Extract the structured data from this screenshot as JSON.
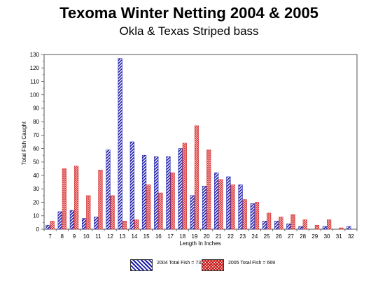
{
  "title": "Texoma Winter Netting 2004 & 2005",
  "subtitle": "Okla & Texas  Striped bass",
  "legend": {
    "item_2004": "2004 Total Fish = 732",
    "item_2005": "2005 Total Fish = 669"
  },
  "colors": {
    "series_2004": "#1a1aaa",
    "series_2005": "#d83030"
  },
  "chart_data": {
    "type": "bar",
    "title": "Texoma Winter Netting 2004 & 2005",
    "subtitle": "Okla & Texas  Striped bass",
    "xlabel": "Length In Inches",
    "ylabel": "Total Fish Caught",
    "ylim": [
      0,
      130
    ],
    "yticks": [
      0,
      10,
      20,
      30,
      40,
      50,
      60,
      70,
      80,
      90,
      100,
      110,
      120,
      130
    ],
    "grid": false,
    "legend_position": "bottom",
    "categories": [
      "7",
      "8",
      "9",
      "10",
      "11",
      "12",
      "13",
      "14",
      "15",
      "16",
      "17",
      "18",
      "19",
      "20",
      "21",
      "22",
      "23",
      "24",
      "25",
      "26",
      "27",
      "28",
      "29",
      "30",
      "31",
      "32"
    ],
    "series": [
      {
        "name": "2004 Total Fish = 732",
        "values": [
          3,
          13,
          14,
          8,
          9,
          59,
          127,
          65,
          55,
          54,
          54,
          60,
          25,
          32,
          42,
          39,
          33,
          19,
          6,
          6,
          4,
          2,
          0,
          2,
          0,
          2
        ]
      },
      {
        "name": "2005 Total Fish = 669",
        "values": [
          6,
          45,
          47,
          25,
          44,
          25,
          6,
          7,
          33,
          27,
          42,
          64,
          77,
          59,
          37,
          33,
          22,
          20,
          12,
          9,
          11,
          7,
          3,
          7,
          1,
          0
        ]
      }
    ]
  }
}
